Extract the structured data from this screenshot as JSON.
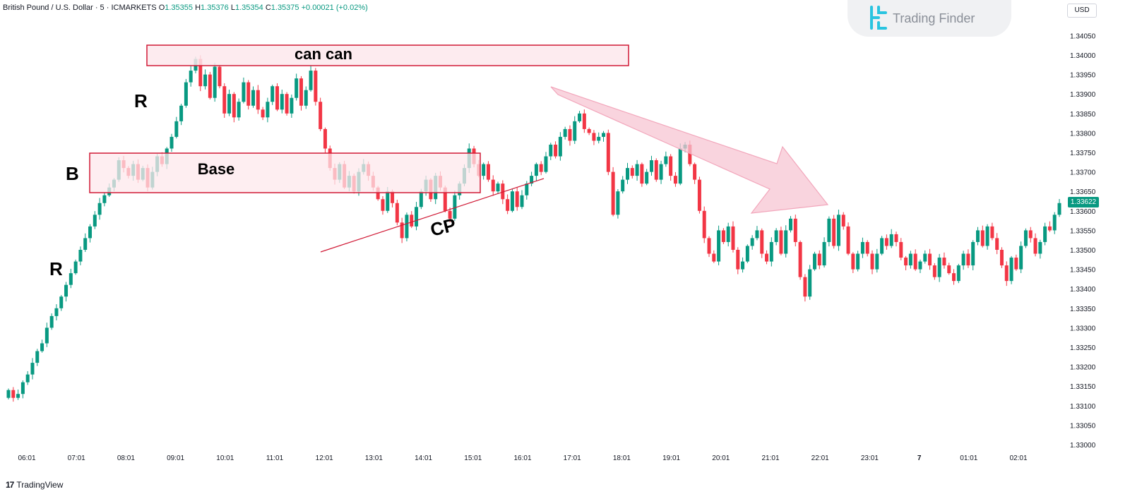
{
  "header": {
    "symbol": "British Pound / U.S. Dollar · 5 · ICMARKETS",
    "o_label": "O",
    "o_value": "1.35355",
    "h_label": "H",
    "h_value": "1.35376",
    "l_label": "L",
    "l_value": "1.35354",
    "c_label": "C",
    "c_value": "1.35375",
    "change": "+0.00021 (+0.02%)"
  },
  "brand": {
    "name": "Trading Finder"
  },
  "footer": {
    "tradingview": "TradingView",
    "tv_mark": "17"
  },
  "axis": {
    "currency": "USD",
    "last_price": "1.33622"
  },
  "colors": {
    "up": "#089981",
    "down": "#f23645",
    "zone_fill": "#fde8ec",
    "zone_border": "#d01935",
    "arrow": "#f7c6d3"
  },
  "chart_data": {
    "type": "candlestick",
    "title": "",
    "xlabel": "",
    "ylabel": "",
    "ylim": [
      1.33,
      1.3405
    ],
    "yticks": [
      "1.34050",
      "1.34000",
      "1.33950",
      "1.33900",
      "1.33850",
      "1.33800",
      "1.33750",
      "1.33700",
      "1.33650",
      "1.33600",
      "1.33550",
      "1.33500",
      "1.33450",
      "1.33400",
      "1.33350",
      "1.33300",
      "1.33250",
      "1.33200",
      "1.33150",
      "1.33100",
      "1.33050",
      "1.33000"
    ],
    "xticks": [
      "06:01",
      "07:01",
      "08:01",
      "09:01",
      "10:01",
      "11:01",
      "12:01",
      "13:01",
      "14:01",
      "15:01",
      "16:01",
      "17:01",
      "18:01",
      "19:01",
      "20:01",
      "21:01",
      "22:01",
      "23:01",
      "7",
      "01:01",
      "02:01"
    ],
    "annotations": {
      "top_zone": "can can",
      "base_zone": "Base",
      "label_b": "B",
      "label_r_upper": "R",
      "label_r_lower": "R",
      "label_cp": "CP"
    },
    "path": [
      [
        1.3314,
        1.3312,
        1.3313,
        1.3316,
        1.3318,
        1.3321,
        1.3324,
        1.3326,
        1.333,
        1.3333,
        1.3335,
        1.3338,
        1.3341,
        1.3344,
        1.3347,
        1.335,
        1.3353,
        1.3356,
        1.3359,
        1.3362,
        1.3364,
        1.3366
      ],
      [
        1.3368,
        1.3373,
        1.3371,
        1.3369,
        1.3372,
        1.3368,
        1.3371,
        1.3366,
        1.337,
        1.3374,
        1.3372,
        1.3376,
        1.3379,
        1.3383,
        1.3387,
        1.3393,
        1.3396,
        1.3399,
        1.3392,
        1.3395,
        1.3389,
        1.3397
      ],
      [
        1.3392,
        1.3385,
        1.339,
        1.3384,
        1.3388,
        1.3393,
        1.3387,
        1.3391,
        1.3386,
        1.3384,
        1.3388,
        1.3392,
        1.3386,
        1.339,
        1.3385,
        1.3389,
        1.3394,
        1.3387,
        1.3391,
        1.3396,
        1.3388,
        1.3381
      ],
      [
        1.3376,
        1.3371,
        1.3368,
        1.3372,
        1.3366,
        1.3369,
        1.3365,
        1.337,
        1.3372,
        1.3369,
        1.3366,
        1.3363,
        1.336,
        1.3365,
        1.3362,
        1.3357,
        1.3353,
        1.3359,
        1.3356,
        1.3361,
        1.3365,
        1.3368
      ],
      [
        1.3363,
        1.3369,
        1.3366,
        1.336,
        1.3358,
        1.3364,
        1.3367,
        1.3371,
        1.3376,
        1.3372,
        1.3369,
        1.3372,
        1.3368,
        1.3365,
        1.3367,
        1.3363,
        1.336,
        1.3365,
        1.3361,
        1.3364,
        1.3367,
        1.3369
      ],
      [
        1.3372,
        1.337,
        1.3374,
        1.3377,
        1.3374,
        1.3379,
        1.3381,
        1.3378,
        1.3383,
        1.3385,
        1.3381,
        1.338,
        1.3378,
        1.3379,
        1.338,
        1.337,
        1.3359,
        1.3365,
        1.3368,
        1.3371,
        1.3369,
        1.3372
      ],
      [
        1.3367,
        1.337,
        1.3373,
        1.3368,
        1.3372,
        1.3374,
        1.3369,
        1.3367,
        1.3376,
        1.3377,
        1.3372,
        1.3368,
        1.336,
        1.3353,
        1.3349,
        1.3347,
        1.3355,
        1.3352,
        1.3356,
        1.335,
        1.3345,
        1.3347
      ],
      [
        1.3351,
        1.3353,
        1.3355,
        1.3349,
        1.3347,
        1.3352,
        1.3355,
        1.3349,
        1.3355,
        1.3358,
        1.3352,
        1.3343,
        1.3338,
        1.3345,
        1.3349,
        1.3346,
        1.3352,
        1.3358,
        1.3351,
        1.3359,
        1.3356,
        1.3349
      ],
      [
        1.3345,
        1.3349,
        1.3352,
        1.3349,
        1.3345,
        1.3349,
        1.3353,
        1.3351,
        1.3354,
        1.3352,
        1.3348,
        1.3346,
        1.3349,
        1.3345,
        1.3347,
        1.3349,
        1.3346,
        1.3343,
        1.3348,
        1.3346,
        1.3344,
        1.3342
      ],
      [
        1.3346,
        1.3349,
        1.3346,
        1.3352,
        1.3355,
        1.3351,
        1.3356,
        1.3353,
        1.335,
        1.3346,
        1.3342,
        1.3348,
        1.3345,
        1.3351,
        1.3355,
        1.3353,
        1.3349,
        1.3352,
        1.3356,
        1.3355,
        1.3359,
        1.3362
      ]
    ]
  }
}
